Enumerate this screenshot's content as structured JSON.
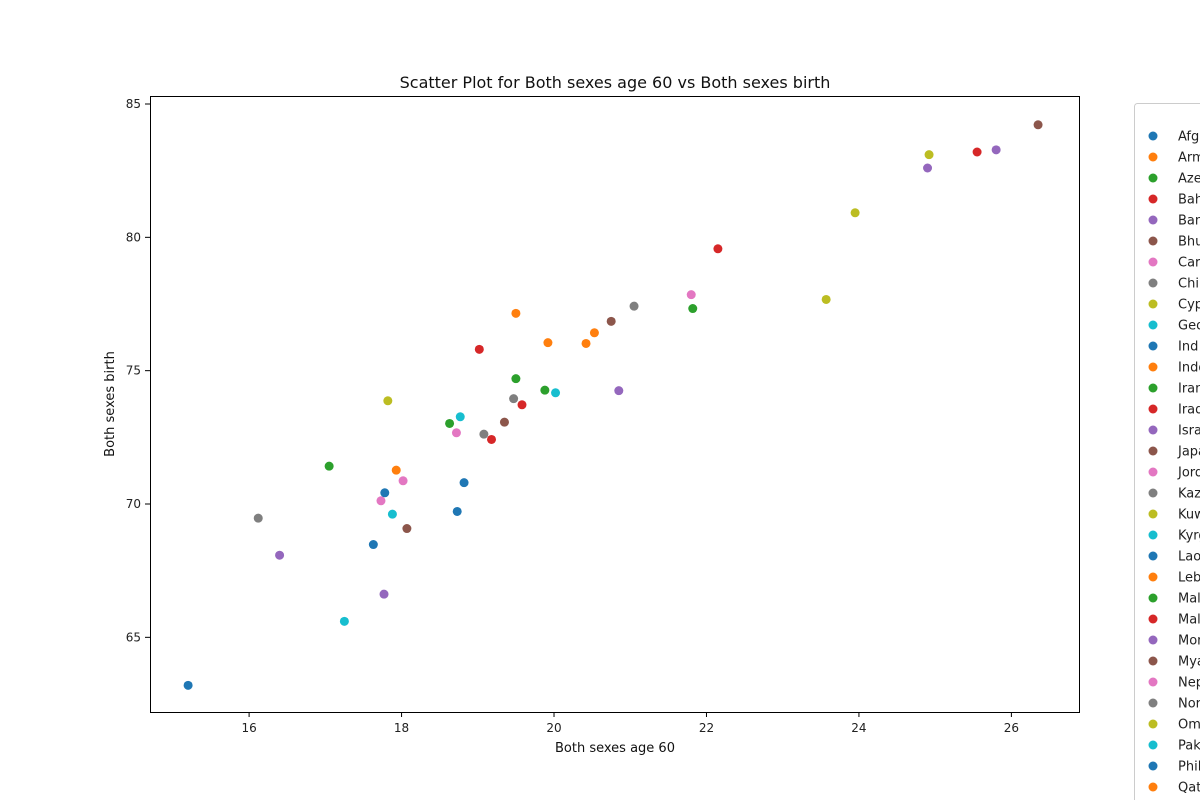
{
  "chart_data": {
    "type": "scatter",
    "title": "Scatter Plot for Both sexes age 60 vs Both sexes birth",
    "xlabel": "Both sexes age 60",
    "ylabel": "Both sexes birth",
    "xlim": [
      14.7,
      26.9
    ],
    "ylim": [
      62.2,
      85.3
    ],
    "xticks": [
      "16",
      "18",
      "20",
      "22",
      "24",
      "26"
    ],
    "yticks": [
      "65",
      "70",
      "75",
      "80",
      "85"
    ],
    "grid": false,
    "legend_position": "right (partially cut off)",
    "series": [
      {
        "name": "Afg",
        "color": "#1f77b4",
        "x": [
          15.2
        ],
        "y": [
          63.2
        ]
      },
      {
        "name": "Arm",
        "color": "#ff7f0e",
        "x": [
          17.93
        ],
        "y": [
          71.27
        ]
      },
      {
        "name": "Aze",
        "color": "#2ca02c",
        "x": [
          17.05
        ],
        "y": [
          71.42
        ]
      },
      {
        "name": "Bah",
        "color": "#d62728",
        "x": [
          22.15
        ],
        "y": [
          79.57
        ]
      },
      {
        "name": "Ban",
        "color": "#9467bd",
        "x": [
          16.4
        ],
        "y": [
          68.08
        ]
      },
      {
        "name": "Bhu",
        "color": "#8c564b",
        "x": [
          18.07
        ],
        "y": [
          69.08
        ]
      },
      {
        "name": "Car",
        "color": "#e377c2",
        "x": [
          18.02
        ],
        "y": [
          70.87
        ]
      },
      {
        "name": "Chi",
        "color": "#7f7f7f",
        "x": [
          21.05
        ],
        "y": [
          77.42
        ]
      },
      {
        "name": "Cyp",
        "color": "#bcbd22",
        "x": [
          24.92
        ],
        "y": [
          83.1
        ]
      },
      {
        "name": "Geo",
        "color": "#17becf",
        "x": [
          18.77
        ],
        "y": [
          73.27
        ]
      },
      {
        "name": "Ind",
        "color": "#1f77b4",
        "x": [
          17.63
        ],
        "y": [
          68.48
        ]
      },
      {
        "name": "Indo",
        "color": "#ff7f0e",
        "x": [
          20.42
        ],
        "y": [
          76.02
        ]
      },
      {
        "name": "Iran",
        "color": "#2ca02c",
        "x": [
          21.82
        ],
        "y": [
          77.33
        ]
      },
      {
        "name": "Iraq",
        "color": "#d62728",
        "x": [
          19.18
        ],
        "y": [
          72.42
        ]
      },
      {
        "name": "Isra",
        "color": "#9467bd",
        "x": [
          25.8
        ],
        "y": [
          83.28
        ]
      },
      {
        "name": "Japa",
        "color": "#8c564b",
        "x": [
          26.35
        ],
        "y": [
          84.22
        ]
      },
      {
        "name": "Jord",
        "color": "#e377c2",
        "x": [
          18.72
        ],
        "y": [
          72.67
        ]
      },
      {
        "name": "Kaz",
        "color": "#7f7f7f",
        "x": [
          16.12
        ],
        "y": [
          69.47
        ]
      },
      {
        "name": "Kuw",
        "color": "#bcbd22",
        "x": [
          17.82
        ],
        "y": [
          73.87
        ]
      },
      {
        "name": "Kyrg",
        "color": "#17becf",
        "x": [
          17.88
        ],
        "y": [
          69.62
        ]
      },
      {
        "name": "Lao",
        "color": "#1f77b4",
        "x": [
          18.73
        ],
        "y": [
          69.72
        ]
      },
      {
        "name": "Leb",
        "color": "#ff7f0e",
        "x": [
          20.53
        ],
        "y": [
          76.42
        ]
      },
      {
        "name": "Mal",
        "color": "#2ca02c",
        "x": [
          19.88
        ],
        "y": [
          74.27
        ]
      },
      {
        "name": "Mal",
        "color": "#d62728",
        "x": [
          19.58
        ],
        "y": [
          73.72
        ]
      },
      {
        "name": "Mon",
        "color": "#9467bd",
        "x": [
          17.77
        ],
        "y": [
          66.62
        ]
      },
      {
        "name": "Mya",
        "color": "#8c564b",
        "x": [
          19.35
        ],
        "y": [
          73.07
        ]
      },
      {
        "name": "Nep",
        "color": "#e377c2",
        "x": [
          17.73
        ],
        "y": [
          70.12
        ]
      },
      {
        "name": "Nor",
        "color": "#7f7f7f",
        "x": [
          19.47
        ],
        "y": [
          73.95
        ]
      },
      {
        "name": "Om",
        "color": "#bcbd22",
        "x": [
          23.95
        ],
        "y": [
          80.92
        ]
      },
      {
        "name": "Pak",
        "color": "#17becf",
        "x": [
          17.25
        ],
        "y": [
          65.6
        ]
      },
      {
        "name": "Phil",
        "color": "#1f77b4",
        "x": [
          17.78
        ],
        "y": [
          70.42
        ]
      },
      {
        "name": "Qat",
        "color": "#ff7f0e",
        "x": [
          19.5
        ],
        "y": [
          77.15
        ]
      },
      {
        "name": "",
        "color": "#2ca02c",
        "x": [
          19.5
        ],
        "y": [
          74.7
        ]
      },
      {
        "name": "",
        "color": "#d62728",
        "x": [
          19.02
        ],
        "y": [
          75.8
        ]
      },
      {
        "name": "",
        "color": "#9467bd",
        "x": [
          20.85
        ],
        "y": [
          74.25
        ]
      },
      {
        "name": "",
        "color": "#8c564b",
        "x": [
          20.75
        ],
        "y": [
          76.85
        ]
      },
      {
        "name": "",
        "color": "#e377c2",
        "x": [
          21.8
        ],
        "y": [
          77.85
        ]
      },
      {
        "name": "",
        "color": "#7f7f7f",
        "x": [
          19.08
        ],
        "y": [
          72.62
        ]
      },
      {
        "name": "",
        "color": "#bcbd22",
        "x": [
          23.57
        ],
        "y": [
          77.67
        ]
      },
      {
        "name": "",
        "color": "#17becf",
        "x": [
          20.02
        ],
        "y": [
          74.17
        ]
      },
      {
        "name": "",
        "color": "#1f77b4",
        "x": [
          18.82
        ],
        "y": [
          70.8
        ]
      },
      {
        "name": "",
        "color": "#ff7f0e",
        "x": [
          19.92
        ],
        "y": [
          76.05
        ]
      },
      {
        "name": "",
        "color": "#2ca02c",
        "x": [
          18.63
        ],
        "y": [
          73.02
        ]
      },
      {
        "name": "",
        "color": "#d62728",
        "x": [
          25.55
        ],
        "y": [
          83.2
        ]
      },
      {
        "name": "",
        "color": "#9467bd",
        "x": [
          24.9
        ],
        "y": [
          82.6
        ]
      }
    ]
  }
}
